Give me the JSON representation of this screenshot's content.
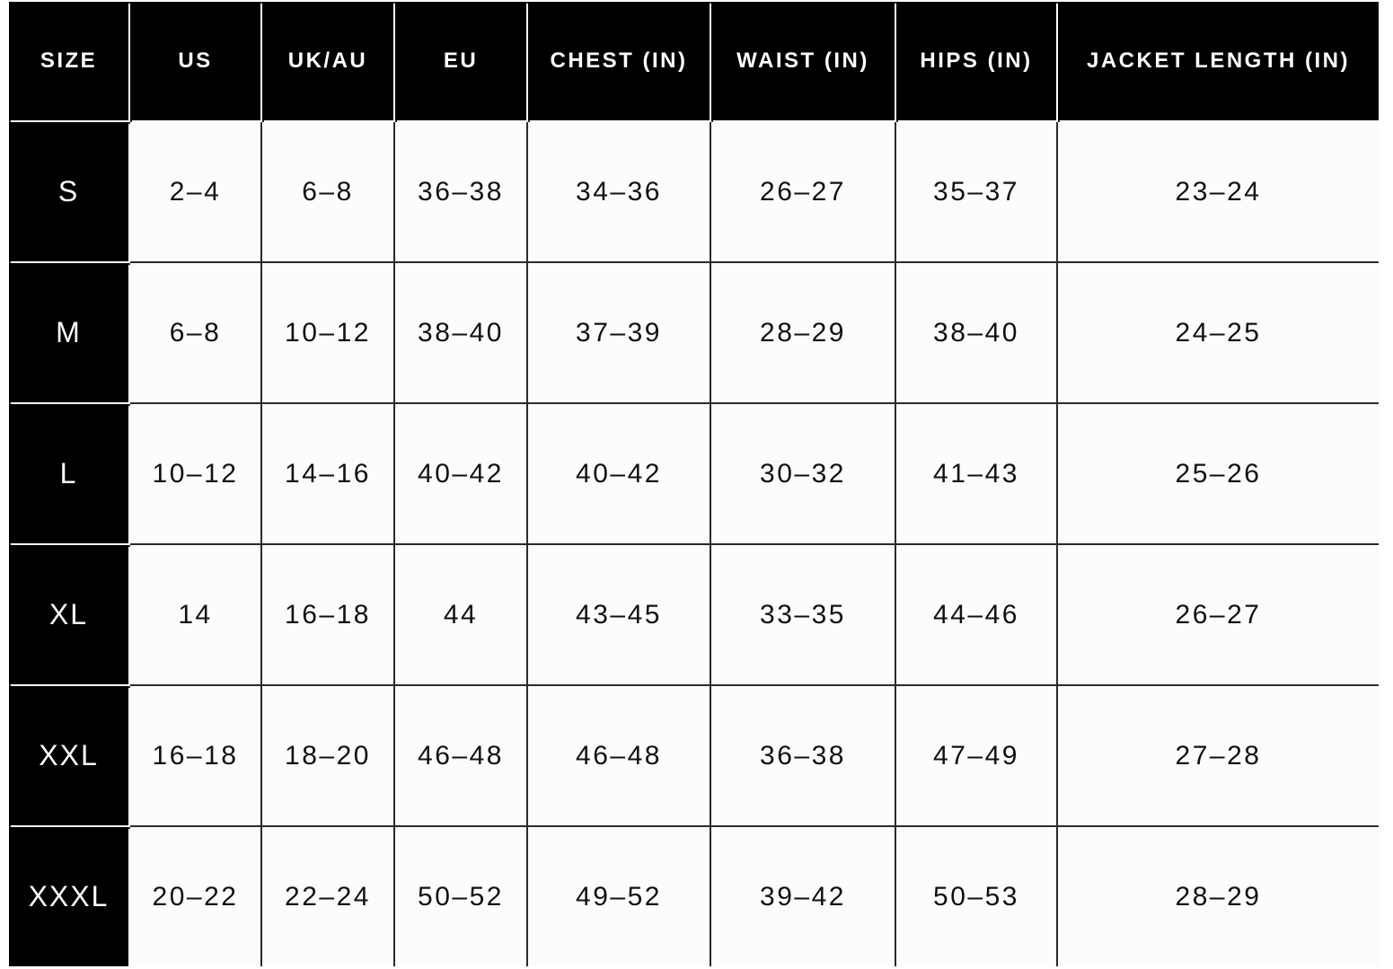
{
  "headers": [
    "SIZE",
    "US",
    "UK/AU",
    "EU",
    "CHEST (IN)",
    "WAIST (IN)",
    "HIPS (IN)",
    "JACKET LENGTH (IN)"
  ],
  "rows": [
    [
      "S",
      "2–4",
      "6–8",
      "36–38",
      "34–36",
      "26–27",
      "35–37",
      "23–24"
    ],
    [
      "M",
      "6–8",
      "10–12",
      "38–40",
      "37–39",
      "28–29",
      "38–40",
      "24–25"
    ],
    [
      "L",
      "10–12",
      "14–16",
      "40–42",
      "40–42",
      "30–32",
      "41–43",
      "25–26"
    ],
    [
      "XL",
      "14",
      "16–18",
      "44",
      "43–45",
      "33–35",
      "44–46",
      "26–27"
    ],
    [
      "XXL",
      "16–18",
      "18–20",
      "46–48",
      "46–48",
      "36–38",
      "47–49",
      "27–28"
    ],
    [
      "XXXL",
      "20–22",
      "22–24",
      "50–52",
      "49–52",
      "39–42",
      "50–53",
      "28–29"
    ]
  ]
}
